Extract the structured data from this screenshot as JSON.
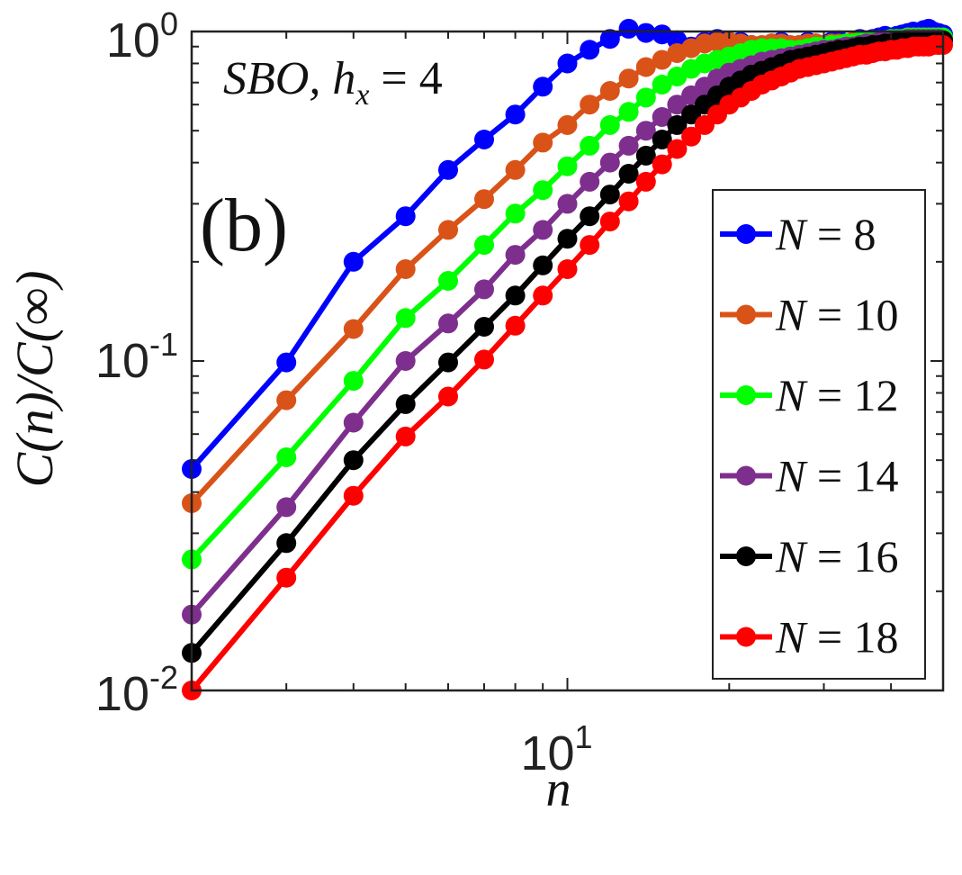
{
  "chart_data": {
    "type": "line",
    "xscale": "log",
    "yscale": "log",
    "xlim": [
      2,
      50
    ],
    "ylim": [
      0.01,
      1
    ],
    "panel_label": "(b)",
    "annotation": "SBO, h_x = 4",
    "annotation_parts": {
      "prefix": "SBO,",
      "var": "h",
      "sub": "x",
      "rest": "= 4"
    },
    "ylabel": "C(n)/C(∞)",
    "xlabel": "n",
    "x_ticks": [
      {
        "value": 10,
        "label": "10",
        "exp": "1"
      }
    ],
    "y_ticks": [
      {
        "value": 0.01,
        "label": "10",
        "exp": "-2"
      },
      {
        "value": 0.1,
        "label": "10",
        "exp": "-1"
      },
      {
        "value": 1,
        "label": "10",
        "exp": "0"
      }
    ],
    "legend_position": "right",
    "series": [
      {
        "name": "N = 8",
        "N": "8",
        "color": "#0000ff",
        "x": [
          2,
          3,
          4,
          5,
          6,
          7,
          8,
          9,
          10,
          11,
          12,
          13,
          14,
          15,
          16,
          17,
          18,
          19,
          20,
          21,
          22,
          23,
          24,
          25,
          26,
          27,
          28,
          29,
          30,
          31,
          32,
          33,
          34,
          35,
          36,
          37,
          38,
          39,
          40,
          41,
          42,
          43,
          44,
          45,
          46,
          47,
          48,
          49,
          50
        ],
        "y": [
          0.047,
          0.099,
          0.2,
          0.275,
          0.38,
          0.47,
          0.56,
          0.68,
          0.8,
          0.88,
          0.95,
          1.02,
          0.99,
          0.98,
          0.94,
          0.9,
          0.93,
          0.95,
          0.92,
          0.93,
          0.91,
          0.9,
          0.92,
          0.93,
          0.9,
          0.91,
          0.93,
          0.92,
          0.91,
          0.93,
          0.94,
          0.92,
          0.93,
          0.95,
          0.94,
          0.95,
          0.96,
          0.97,
          0.96,
          0.97,
          0.98,
          0.99,
          1.0,
          0.99,
          1.01,
          1.02,
          1.0,
          0.99,
          0.98
        ]
      },
      {
        "name": "N = 10",
        "N": "10",
        "color": "#d95319",
        "x": [
          2,
          3,
          4,
          5,
          6,
          7,
          8,
          9,
          10,
          11,
          12,
          13,
          14,
          15,
          16,
          17,
          18,
          19,
          20,
          21,
          22,
          23,
          24,
          25,
          26,
          27,
          28,
          29,
          30,
          31,
          32,
          33,
          34,
          35,
          36,
          37,
          38,
          39,
          40,
          41,
          42,
          43,
          44,
          45,
          46,
          47,
          48,
          49,
          50
        ],
        "y": [
          0.037,
          0.076,
          0.125,
          0.19,
          0.25,
          0.31,
          0.38,
          0.46,
          0.52,
          0.6,
          0.66,
          0.72,
          0.78,
          0.82,
          0.86,
          0.89,
          0.92,
          0.93,
          0.93,
          0.92,
          0.91,
          0.91,
          0.92,
          0.92,
          0.91,
          0.91,
          0.92,
          0.92,
          0.91,
          0.92,
          0.92,
          0.92,
          0.93,
          0.93,
          0.93,
          0.94,
          0.94,
          0.94,
          0.95,
          0.95,
          0.95,
          0.96,
          0.96,
          0.96,
          0.96,
          0.96,
          0.96,
          0.96,
          0.95
        ]
      },
      {
        "name": "N = 12",
        "N": "12",
        "color": "#00ff00",
        "x": [
          2,
          3,
          4,
          5,
          6,
          7,
          8,
          9,
          10,
          11,
          12,
          13,
          14,
          15,
          16,
          17,
          18,
          19,
          20,
          21,
          22,
          23,
          24,
          25,
          26,
          27,
          28,
          29,
          30,
          31,
          32,
          33,
          34,
          35,
          36,
          37,
          38,
          39,
          40,
          41,
          42,
          43,
          44,
          45,
          46,
          47,
          48,
          49,
          50
        ],
        "y": [
          0.025,
          0.051,
          0.087,
          0.135,
          0.175,
          0.225,
          0.28,
          0.33,
          0.39,
          0.45,
          0.52,
          0.57,
          0.63,
          0.69,
          0.73,
          0.77,
          0.8,
          0.82,
          0.84,
          0.86,
          0.88,
          0.89,
          0.89,
          0.89,
          0.88,
          0.88,
          0.89,
          0.9,
          0.9,
          0.91,
          0.91,
          0.92,
          0.92,
          0.93,
          0.93,
          0.94,
          0.94,
          0.94,
          0.95,
          0.95,
          0.95,
          0.96,
          0.96,
          0.96,
          0.96,
          0.96,
          0.96,
          0.96,
          0.96
        ]
      },
      {
        "name": "N = 14",
        "N": "14",
        "color": "#7e2f8e",
        "x": [
          2,
          3,
          4,
          5,
          6,
          7,
          8,
          9,
          10,
          11,
          12,
          13,
          14,
          15,
          16,
          17,
          18,
          19,
          20,
          21,
          22,
          23,
          24,
          25,
          26,
          27,
          28,
          29,
          30,
          31,
          32,
          33,
          34,
          35,
          36,
          37,
          38,
          39,
          40,
          41,
          42,
          43,
          44,
          45,
          46,
          47,
          48,
          49,
          50
        ],
        "y": [
          0.017,
          0.036,
          0.065,
          0.1,
          0.13,
          0.165,
          0.21,
          0.25,
          0.3,
          0.35,
          0.4,
          0.45,
          0.5,
          0.55,
          0.6,
          0.64,
          0.68,
          0.72,
          0.75,
          0.77,
          0.79,
          0.81,
          0.82,
          0.83,
          0.84,
          0.85,
          0.86,
          0.87,
          0.88,
          0.88,
          0.89,
          0.9,
          0.9,
          0.91,
          0.92,
          0.92,
          0.93,
          0.93,
          0.94,
          0.94,
          0.94,
          0.95,
          0.95,
          0.95,
          0.95,
          0.95,
          0.95,
          0.95,
          0.94
        ]
      },
      {
        "name": "N = 16",
        "N": "16",
        "color": "#000000",
        "x": [
          2,
          3,
          4,
          5,
          6,
          7,
          8,
          9,
          10,
          11,
          12,
          13,
          14,
          15,
          16,
          17,
          18,
          19,
          20,
          21,
          22,
          23,
          24,
          25,
          26,
          27,
          28,
          29,
          30,
          31,
          32,
          33,
          34,
          35,
          36,
          37,
          38,
          39,
          40,
          41,
          42,
          43,
          44,
          45,
          46,
          47,
          48,
          49,
          50
        ],
        "y": [
          0.013,
          0.028,
          0.05,
          0.074,
          0.099,
          0.127,
          0.158,
          0.195,
          0.235,
          0.275,
          0.32,
          0.37,
          0.42,
          0.47,
          0.52,
          0.56,
          0.6,
          0.64,
          0.68,
          0.71,
          0.74,
          0.76,
          0.78,
          0.8,
          0.82,
          0.83,
          0.84,
          0.85,
          0.86,
          0.87,
          0.88,
          0.88,
          0.89,
          0.9,
          0.9,
          0.91,
          0.91,
          0.92,
          0.92,
          0.93,
          0.93,
          0.93,
          0.94,
          0.94,
          0.94,
          0.94,
          0.94,
          0.94,
          0.94
        ]
      },
      {
        "name": "N = 18",
        "N": "18",
        "color": "#ff0000",
        "x": [
          2,
          3,
          4,
          5,
          6,
          7,
          8,
          9,
          10,
          11,
          12,
          13,
          14,
          15,
          16,
          17,
          18,
          19,
          20,
          21,
          22,
          23,
          24,
          25,
          26,
          27,
          28,
          29,
          30,
          31,
          32,
          33,
          34,
          35,
          36,
          37,
          38,
          39,
          40,
          41,
          42,
          43,
          44,
          45,
          46,
          47,
          48,
          49,
          50
        ],
        "y": [
          0.01,
          0.022,
          0.039,
          0.059,
          0.078,
          0.101,
          0.128,
          0.158,
          0.19,
          0.225,
          0.265,
          0.305,
          0.35,
          0.395,
          0.44,
          0.48,
          0.52,
          0.56,
          0.6,
          0.63,
          0.66,
          0.69,
          0.71,
          0.73,
          0.75,
          0.77,
          0.78,
          0.79,
          0.8,
          0.81,
          0.82,
          0.83,
          0.84,
          0.85,
          0.85,
          0.86,
          0.87,
          0.87,
          0.88,
          0.88,
          0.89,
          0.89,
          0.9,
          0.9,
          0.9,
          0.9,
          0.91,
          0.91,
          0.91
        ]
      }
    ]
  }
}
